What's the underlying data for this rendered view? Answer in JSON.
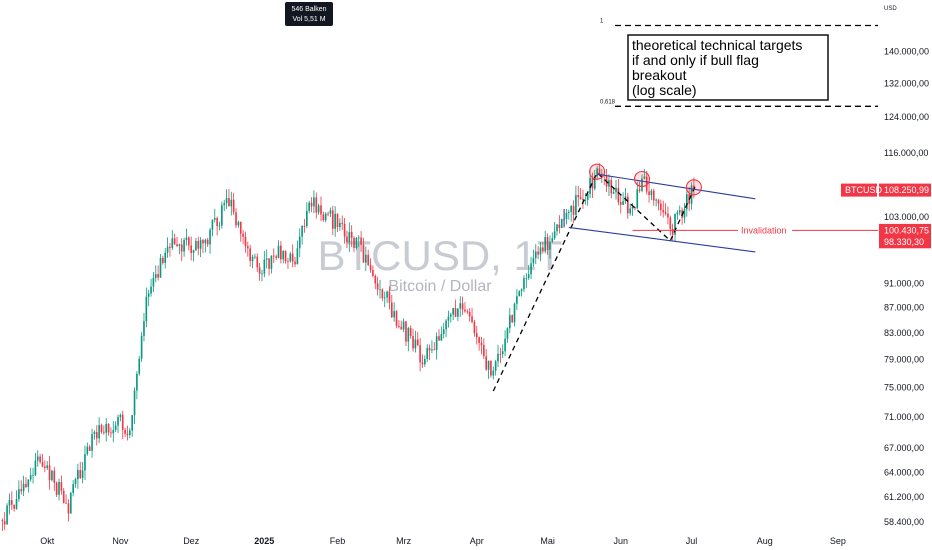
{
  "chart_data": {
    "type": "candlestick",
    "symbol": "BTCUSD, 1T",
    "description": "Bitcoin / Dollar",
    "currency_label": "USD",
    "scale": "log",
    "ylim": [
      57000,
      152000
    ],
    "y_ticks": [
      {
        "value": 140000,
        "label": "140.000,00"
      },
      {
        "value": 132000,
        "label": "132.000,00"
      },
      {
        "value": 124000,
        "label": "124.000,00"
      },
      {
        "value": 116000,
        "label": "116.000,00"
      },
      {
        "value": 103000,
        "label": "103.000,00"
      },
      {
        "value": 91000,
        "label": "91.000,00"
      },
      {
        "value": 87000,
        "label": "87.000,00"
      },
      {
        "value": 83000,
        "label": "83.000,00"
      },
      {
        "value": 79000,
        "label": "79.000,00"
      },
      {
        "value": 75000,
        "label": "75.000,00"
      },
      {
        "value": 71000,
        "label": "71.000,00"
      },
      {
        "value": 67000,
        "label": "67.000,00"
      },
      {
        "value": 64000,
        "label": "64.000,00"
      },
      {
        "value": 61200,
        "label": "61.200,00"
      },
      {
        "value": 58400,
        "label": "58.400,00"
      }
    ],
    "x_ticks": [
      {
        "date": "2024-10-01",
        "label": "Okt",
        "bold": false
      },
      {
        "date": "2024-11-01",
        "label": "Nov",
        "bold": false
      },
      {
        "date": "2024-12-01",
        "label": "Dez",
        "bold": false
      },
      {
        "date": "2025-01-01",
        "label": "2025",
        "bold": true
      },
      {
        "date": "2025-02-01",
        "label": "Feb",
        "bold": false
      },
      {
        "date": "2025-03-01",
        "label": "Mrz",
        "bold": false
      },
      {
        "date": "2025-04-01",
        "label": "Apr",
        "bold": false
      },
      {
        "date": "2025-05-01",
        "label": "Mai",
        "bold": false
      },
      {
        "date": "2025-06-01",
        "label": "Jun",
        "bold": false
      },
      {
        "date": "2025-07-01",
        "label": "Jul",
        "bold": false
      },
      {
        "date": "2025-08-01",
        "label": "Aug",
        "bold": false
      },
      {
        "date": "2025-09-01",
        "label": "Sep",
        "bold": false
      }
    ],
    "x_range": [
      "2024-09-11",
      "2025-09-18"
    ],
    "price_badges": [
      {
        "symbol": "BTCUSD",
        "value": 108250.99,
        "label": "108.250,99",
        "color": "#f23645"
      },
      {
        "value": 100430.75,
        "label": "100.430,75",
        "color": "#f23645"
      },
      {
        "value": 98330.3,
        "label": "98.330,30",
        "color": "#f23645"
      }
    ],
    "anchors": [
      {
        "date": "2024-09-12",
        "close": 58600
      },
      {
        "date": "2024-09-27",
        "close": 65800
      },
      {
        "date": "2024-10-10",
        "close": 60300
      },
      {
        "date": "2024-10-20",
        "close": 68500
      },
      {
        "date": "2024-10-31",
        "close": 70400
      },
      {
        "date": "2024-11-05",
        "close": 69000
      },
      {
        "date": "2024-11-12",
        "close": 88000
      },
      {
        "date": "2024-11-22",
        "close": 98500
      },
      {
        "date": "2024-12-05",
        "close": 97000
      },
      {
        "date": "2024-12-17",
        "close": 106300
      },
      {
        "date": "2024-12-30",
        "close": 92500
      },
      {
        "date": "2025-01-07",
        "close": 97000
      },
      {
        "date": "2025-01-13",
        "close": 94500
      },
      {
        "date": "2025-01-21",
        "close": 106000
      },
      {
        "date": "2025-01-31",
        "close": 102000
      },
      {
        "date": "2025-02-10",
        "close": 97500
      },
      {
        "date": "2025-02-27",
        "close": 84500
      },
      {
        "date": "2025-03-10",
        "close": 79000
      },
      {
        "date": "2025-03-25",
        "close": 87500
      },
      {
        "date": "2025-04-08",
        "close": 76500
      },
      {
        "date": "2025-04-22",
        "close": 93000
      },
      {
        "date": "2025-05-09",
        "close": 103000
      },
      {
        "date": "2025-05-22",
        "close": 111000
      },
      {
        "date": "2025-06-06",
        "close": 104500
      },
      {
        "date": "2025-06-10",
        "close": 110000
      },
      {
        "date": "2025-06-22",
        "close": 100500
      },
      {
        "date": "2025-07-02",
        "close": 108250
      }
    ],
    "levels": [
      {
        "name": "1",
        "value": 147000,
        "style": "dashed"
      },
      {
        "name": "0,618",
        "value": 126500,
        "style": "dashed"
      }
    ],
    "invalidation": {
      "label": "Invalidation",
      "value": 100430.75
    },
    "channel": {
      "upper": [
        {
          "date": "2025-05-22",
          "value": 111500
        },
        {
          "date": "2025-07-28",
          "value": 106500
        }
      ],
      "lower": [
        {
          "date": "2025-05-10",
          "value": 101000
        },
        {
          "date": "2025-07-28",
          "value": 96500
        }
      ]
    },
    "zigzag": [
      {
        "date": "2025-04-08",
        "value": 74500
      },
      {
        "date": "2025-05-22",
        "value": 111800
      },
      {
        "date": "2025-06-22",
        "value": 98500
      },
      {
        "date": "2025-07-03",
        "value": 109500
      }
    ],
    "flagpole": [
      {
        "date": "2025-05-08",
        "value": 101000
      },
      {
        "date": "2025-05-08",
        "value": 104500
      }
    ],
    "circles": [
      {
        "date": "2025-05-22",
        "value": 112000
      },
      {
        "date": "2025-06-10",
        "value": 110500
      },
      {
        "date": "2025-07-02",
        "value": 108800
      }
    ],
    "note": {
      "lines": [
        "theoretical technical targets",
        "if and only if bull flag",
        "breakout",
        "(log scale)"
      ]
    },
    "info_box": {
      "line1": "546 Balken",
      "line2": "Vol 5,51 M"
    }
  },
  "colors": {
    "up": "#089981",
    "down": "#f23645",
    "channel": "#2a3f9d",
    "badge": "#f23645"
  }
}
